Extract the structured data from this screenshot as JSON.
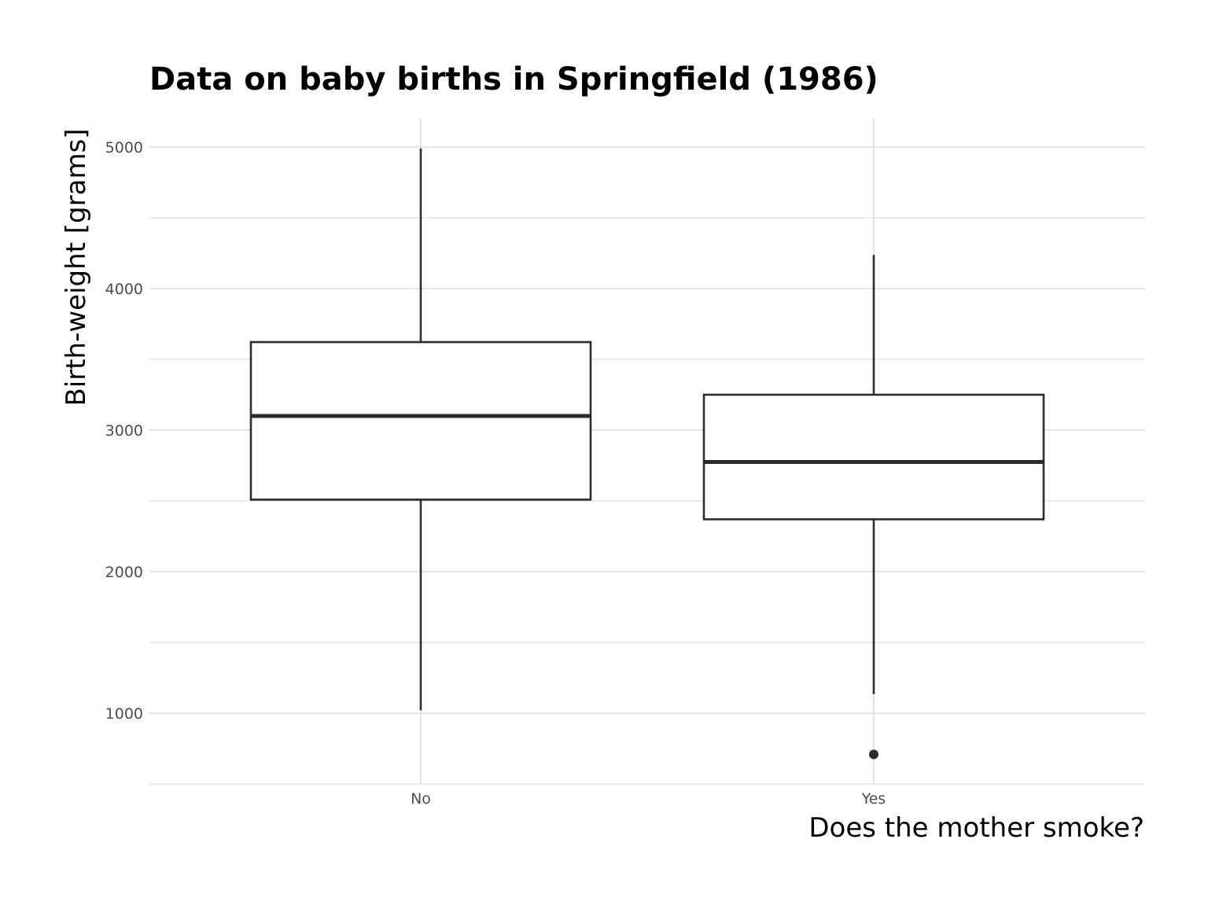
{
  "chart_data": {
    "type": "boxplot",
    "title": "Data on baby births in Springfield (1986)",
    "xlabel": "Does the mother smoke?",
    "ylabel": "Birth-weight [grams]",
    "categories": [
      "No",
      "Yes"
    ],
    "boxes": [
      {
        "category": "No",
        "min": 1021,
        "q1": 2509,
        "median": 3100,
        "q3": 3622,
        "max": 4990,
        "outliers": []
      },
      {
        "category": "Yes",
        "min": 1135,
        "q1": 2370,
        "median": 2775,
        "q3": 3250,
        "max": 4238,
        "outliers": [
          709
        ]
      }
    ],
    "ylim": [
      500,
      5200
    ],
    "yticks": [
      1000,
      2000,
      3000,
      4000,
      5000
    ],
    "grid": true,
    "legend": "none",
    "colors": {
      "box_outline": "#2b2b2b",
      "box_fill": "#ffffff",
      "grid": "#d3d3d3",
      "tick_text": "#4d4d4d"
    }
  }
}
